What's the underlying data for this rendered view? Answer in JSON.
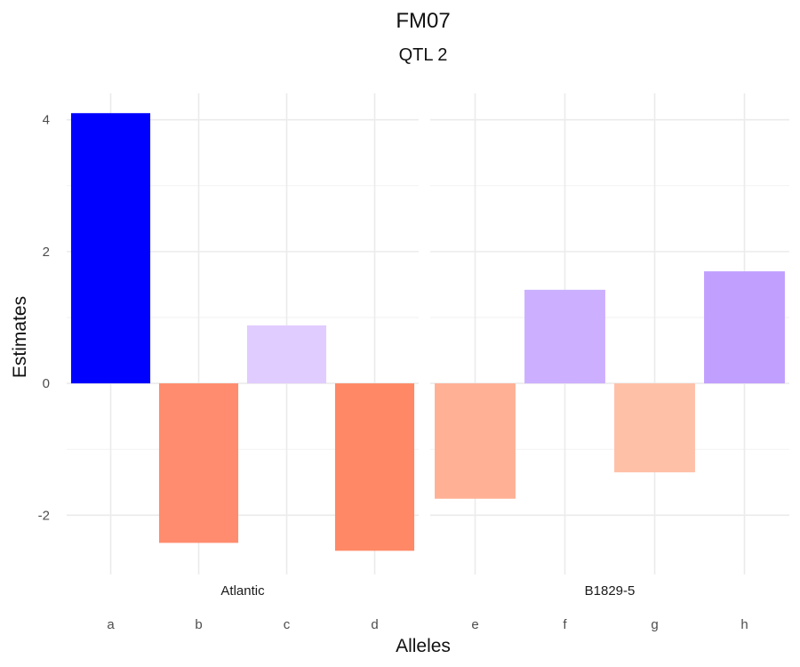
{
  "chart_data": {
    "type": "bar",
    "title": "FM07",
    "subtitle": "QTL 2",
    "xlabel": "Alleles",
    "ylabel": "Estimates",
    "ylim": [
      -2.9,
      4.4
    ],
    "yticks": [
      4,
      2,
      0,
      -2
    ],
    "ytick_labels": [
      "4",
      "2",
      "0",
      "-2"
    ],
    "grid": true,
    "legend": "none",
    "panels": [
      {
        "name": "Atlantic",
        "categories": [
          "a",
          "b",
          "c",
          "d"
        ],
        "values": [
          4.1,
          -2.42,
          0.88,
          -2.54
        ],
        "colors": [
          "#0000ff",
          "#ff8c6e",
          "#e1ccff",
          "#ff8866"
        ]
      },
      {
        "name": "B1829-5",
        "categories": [
          "e",
          "f",
          "g",
          "h"
        ],
        "values": [
          -1.75,
          1.42,
          -1.35,
          1.7
        ],
        "colors": [
          "#ffb095",
          "#ccb0ff",
          "#ffc0a8",
          "#c19fff"
        ]
      }
    ]
  }
}
